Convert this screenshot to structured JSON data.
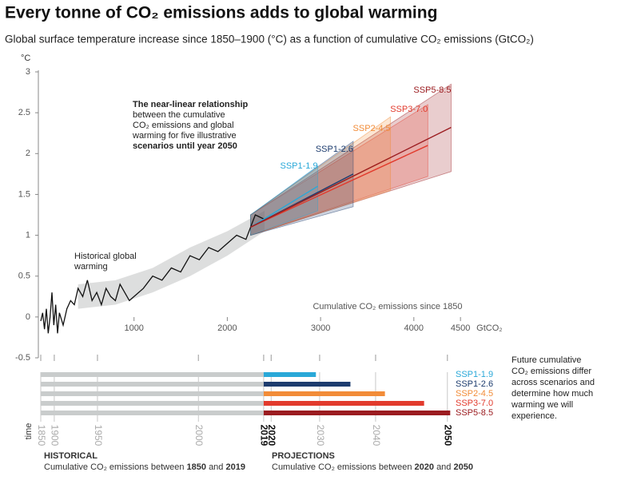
{
  "chart_data": {
    "type": "line",
    "title": "Every tonne of CO₂ emissions adds to global warming",
    "subtitle": "Global surface temperature increase since 1850–1900 (°C) as a function of cumulative CO₂ emissions (GtCO₂)",
    "y_label": "°C",
    "x_unit": "GtCO₂",
    "x_label": "Cumulative CO₂ emissions since 1850",
    "xlim": [
      0,
      4500
    ],
    "ylim": [
      -0.5,
      3
    ],
    "xticks": [
      1000,
      2000,
      3000,
      4000,
      4500
    ],
    "yticks": [
      -0.5,
      0,
      0.5,
      1,
      1.5,
      2,
      2.5,
      3
    ],
    "annotation": [
      "The near-linear relationship",
      "between the cumulative",
      "CO₂ emissions and global",
      "warming for five illustrative",
      "scenarios until year 2050"
    ],
    "historical_label": [
      "Historical global",
      "warming"
    ],
    "historical": {
      "color": "#111111",
      "x": [
        0,
        20,
        40,
        60,
        80,
        100,
        120,
        140,
        160,
        180,
        200,
        240,
        280,
        320,
        360,
        400,
        450,
        500,
        550,
        600,
        650,
        700,
        750,
        800,
        850,
        900,
        950,
        1000,
        1100,
        1200,
        1300,
        1400,
        1500,
        1600,
        1700,
        1800,
        1900,
        2000,
        2100,
        2200,
        2300,
        2390
      ],
      "values": [
        -0.05,
        0.05,
        -0.15,
        0.1,
        -0.2,
        0.0,
        0.3,
        -0.1,
        0.15,
        -0.2,
        0.05,
        -0.1,
        0.1,
        0.2,
        0.15,
        0.35,
        0.25,
        0.45,
        0.2,
        0.3,
        0.15,
        0.35,
        0.25,
        0.2,
        0.4,
        0.3,
        0.2,
        0.25,
        0.35,
        0.5,
        0.45,
        0.6,
        0.55,
        0.75,
        0.7,
        0.85,
        0.8,
        0.9,
        1.0,
        0.95,
        1.25,
        1.2
      ]
    },
    "historical_range": {
      "color": "#d4d6d6",
      "x": [
        400,
        800,
        1200,
        1600,
        2000,
        2400
      ],
      "lower": [
        0.1,
        0.15,
        0.3,
        0.5,
        0.75,
        1.05
      ],
      "upper": [
        0.4,
        0.45,
        0.6,
        0.85,
        1.05,
        1.3
      ]
    },
    "series": [
      {
        "name": "SSP1-1.9",
        "color": "#29a8d8",
        "x": [
          2250,
          2970
        ],
        "values": [
          1.1,
          1.6
        ],
        "lower": [
          1.0,
          1.3
        ],
        "upper": [
          1.25,
          1.85
        ],
        "projected_cumulative": 560
      },
      {
        "name": "SSP1-2.6",
        "color": "#1d3c6e",
        "x": [
          2250,
          3350
        ],
        "values": [
          1.1,
          1.75
        ],
        "lower": [
          1.0,
          1.35
        ],
        "upper": [
          1.25,
          2.15
        ],
        "projected_cumulative": 930
      },
      {
        "name": "SSP2-4.5",
        "color": "#f28c38",
        "x": [
          2250,
          3750
        ],
        "values": [
          1.1,
          1.95
        ],
        "lower": [
          1.0,
          1.55
        ],
        "upper": [
          1.25,
          2.45
        ],
        "projected_cumulative": 1300
      },
      {
        "name": "SSP3-7.0",
        "color": "#e23a2c",
        "x": [
          2250,
          4150
        ],
        "values": [
          1.1,
          2.1
        ],
        "lower": [
          1.0,
          1.72
        ],
        "upper": [
          1.25,
          2.6
        ],
        "projected_cumulative": 1720
      },
      {
        "name": "SSP5-8.5",
        "color": "#9b1c20",
        "x": [
          2250,
          4400
        ],
        "values": [
          1.1,
          2.32
        ],
        "lower": [
          1.0,
          1.78
        ],
        "upper": [
          1.25,
          2.85
        ],
        "projected_cumulative": 2000
      }
    ],
    "historical_cumulative": 2390,
    "historical_bar_color": "#c9cccc",
    "time_label": "time",
    "time_ticks": [
      {
        "value": 0,
        "label": "1850"
      },
      {
        "value": 145,
        "label": "1900"
      },
      {
        "value": 608,
        "label": "1950"
      },
      {
        "value": 1690,
        "label": "2000"
      },
      {
        "value": 2390,
        "label": "2019"
      },
      {
        "value": 2470,
        "label": "2020"
      },
      {
        "value": 2990,
        "label": "2030"
      },
      {
        "value": 3590,
        "label": "2040"
      },
      {
        "value": 4360,
        "label": "2050"
      }
    ],
    "note": [
      "Future cumulative",
      "CO₂ emissions differ",
      "across scenarios and",
      "determine how much",
      "warming we will",
      "experience."
    ],
    "footer_left": {
      "heading": "HISTORICAL",
      "text": "Cumulative CO₂ emissions between",
      "from": "1850",
      "and": "and",
      "to": "2019"
    },
    "footer_right": {
      "heading": "PROJECTIONS",
      "text": "Cumulative CO₂ emissions between",
      "from": "2020",
      "and": "and",
      "to": "2050"
    }
  }
}
